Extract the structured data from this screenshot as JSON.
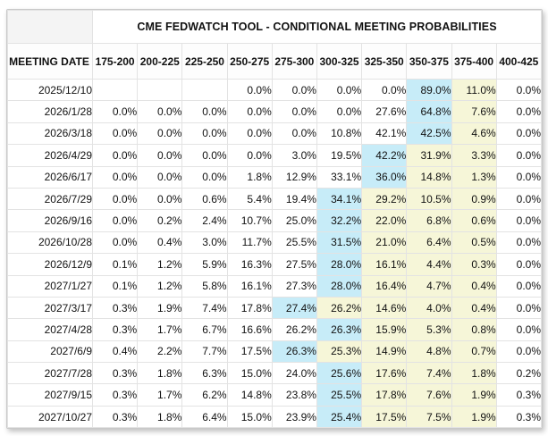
{
  "title": "CME FEDWATCH TOOL - CONDITIONAL MEETING PROBABILITIES",
  "colors": {
    "blue_highlight": "#c7ecf8",
    "yellow_highlight": "#f6f6d8",
    "gridline": "#e3e3e3",
    "corner_bg": "#f4f4f4"
  },
  "table": {
    "corner_label": "",
    "date_header": "MEETING DATE",
    "rate_headers": [
      "175-200",
      "200-225",
      "225-250",
      "250-275",
      "275-300",
      "300-325",
      "325-350",
      "350-375",
      "375-400",
      "400-425"
    ],
    "rows": [
      {
        "date": "2025/12/10",
        "values": [
          "",
          "",
          "",
          "0.0%",
          "0.0%",
          "0.0%",
          "0.0%",
          "89.0%",
          "11.0%",
          "0.0%"
        ],
        "blue": 7,
        "yellow": [
          8
        ]
      },
      {
        "date": "2026/1/28",
        "values": [
          "0.0%",
          "0.0%",
          "0.0%",
          "0.0%",
          "0.0%",
          "0.0%",
          "27.6%",
          "64.8%",
          "7.6%",
          "0.0%"
        ],
        "blue": 7,
        "yellow": [
          8
        ]
      },
      {
        "date": "2026/3/18",
        "values": [
          "0.0%",
          "0.0%",
          "0.0%",
          "0.0%",
          "0.0%",
          "10.8%",
          "42.1%",
          "42.5%",
          "4.6%",
          "0.0%"
        ],
        "blue": 7,
        "yellow": [
          8
        ]
      },
      {
        "date": "2026/4/29",
        "values": [
          "0.0%",
          "0.0%",
          "0.0%",
          "0.0%",
          "3.0%",
          "19.5%",
          "42.2%",
          "31.9%",
          "3.3%",
          "0.0%"
        ],
        "blue": 6,
        "yellow": [
          7,
          8
        ]
      },
      {
        "date": "2026/6/17",
        "values": [
          "0.0%",
          "0.0%",
          "0.0%",
          "1.8%",
          "12.9%",
          "33.1%",
          "36.0%",
          "14.8%",
          "1.3%",
          "0.0%"
        ],
        "blue": 6,
        "yellow": [
          7,
          8
        ]
      },
      {
        "date": "2026/7/29",
        "values": [
          "0.0%",
          "0.0%",
          "0.6%",
          "5.4%",
          "19.4%",
          "34.1%",
          "29.2%",
          "10.5%",
          "0.9%",
          "0.0%"
        ],
        "blue": 5,
        "yellow": [
          6,
          7,
          8
        ]
      },
      {
        "date": "2026/9/16",
        "values": [
          "0.0%",
          "0.2%",
          "2.4%",
          "10.7%",
          "25.0%",
          "32.2%",
          "22.0%",
          "6.8%",
          "0.6%",
          "0.0%"
        ],
        "blue": 5,
        "yellow": [
          6,
          7,
          8
        ]
      },
      {
        "date": "2026/10/28",
        "values": [
          "0.0%",
          "0.4%",
          "3.0%",
          "11.7%",
          "25.5%",
          "31.5%",
          "21.0%",
          "6.4%",
          "0.5%",
          "0.0%"
        ],
        "blue": 5,
        "yellow": [
          6,
          7,
          8
        ]
      },
      {
        "date": "2026/12/9",
        "values": [
          "0.1%",
          "1.2%",
          "5.9%",
          "16.3%",
          "27.5%",
          "28.0%",
          "16.1%",
          "4.4%",
          "0.3%",
          "0.0%"
        ],
        "blue": 5,
        "yellow": [
          6,
          7,
          8
        ]
      },
      {
        "date": "2027/1/27",
        "values": [
          "0.1%",
          "1.2%",
          "5.8%",
          "16.1%",
          "27.3%",
          "28.0%",
          "16.4%",
          "4.7%",
          "0.4%",
          "0.0%"
        ],
        "blue": 5,
        "yellow": [
          6,
          7,
          8
        ]
      },
      {
        "date": "2027/3/17",
        "values": [
          "0.3%",
          "1.9%",
          "7.4%",
          "17.8%",
          "27.4%",
          "26.2%",
          "14.6%",
          "4.0%",
          "0.4%",
          "0.0%"
        ],
        "blue": 4,
        "yellow": [
          5,
          6,
          7,
          8
        ]
      },
      {
        "date": "2027/4/28",
        "values": [
          "0.3%",
          "1.7%",
          "6.7%",
          "16.6%",
          "26.2%",
          "26.3%",
          "15.9%",
          "5.3%",
          "0.8%",
          "0.0%"
        ],
        "blue": 5,
        "yellow": [
          6,
          7,
          8
        ]
      },
      {
        "date": "2027/6/9",
        "values": [
          "0.4%",
          "2.2%",
          "7.7%",
          "17.5%",
          "26.3%",
          "25.3%",
          "14.9%",
          "4.8%",
          "0.7%",
          "0.0%"
        ],
        "blue": 4,
        "yellow": [
          5,
          6,
          7,
          8
        ]
      },
      {
        "date": "2027/7/28",
        "values": [
          "0.3%",
          "1.8%",
          "6.3%",
          "15.0%",
          "24.0%",
          "25.6%",
          "17.6%",
          "7.4%",
          "1.8%",
          "0.2%"
        ],
        "blue": 5,
        "yellow": [
          6,
          7,
          8
        ]
      },
      {
        "date": "2027/9/15",
        "values": [
          "0.3%",
          "1.7%",
          "6.2%",
          "14.8%",
          "23.8%",
          "25.5%",
          "17.8%",
          "7.6%",
          "1.9%",
          "0.3%"
        ],
        "blue": 5,
        "yellow": [
          6,
          7,
          8
        ]
      },
      {
        "date": "2027/10/27",
        "values": [
          "0.3%",
          "1.8%",
          "6.4%",
          "15.0%",
          "23.9%",
          "25.4%",
          "17.5%",
          "7.5%",
          "1.9%",
          "0.3%"
        ],
        "blue": 5,
        "yellow": [
          6,
          7,
          8
        ]
      }
    ]
  }
}
